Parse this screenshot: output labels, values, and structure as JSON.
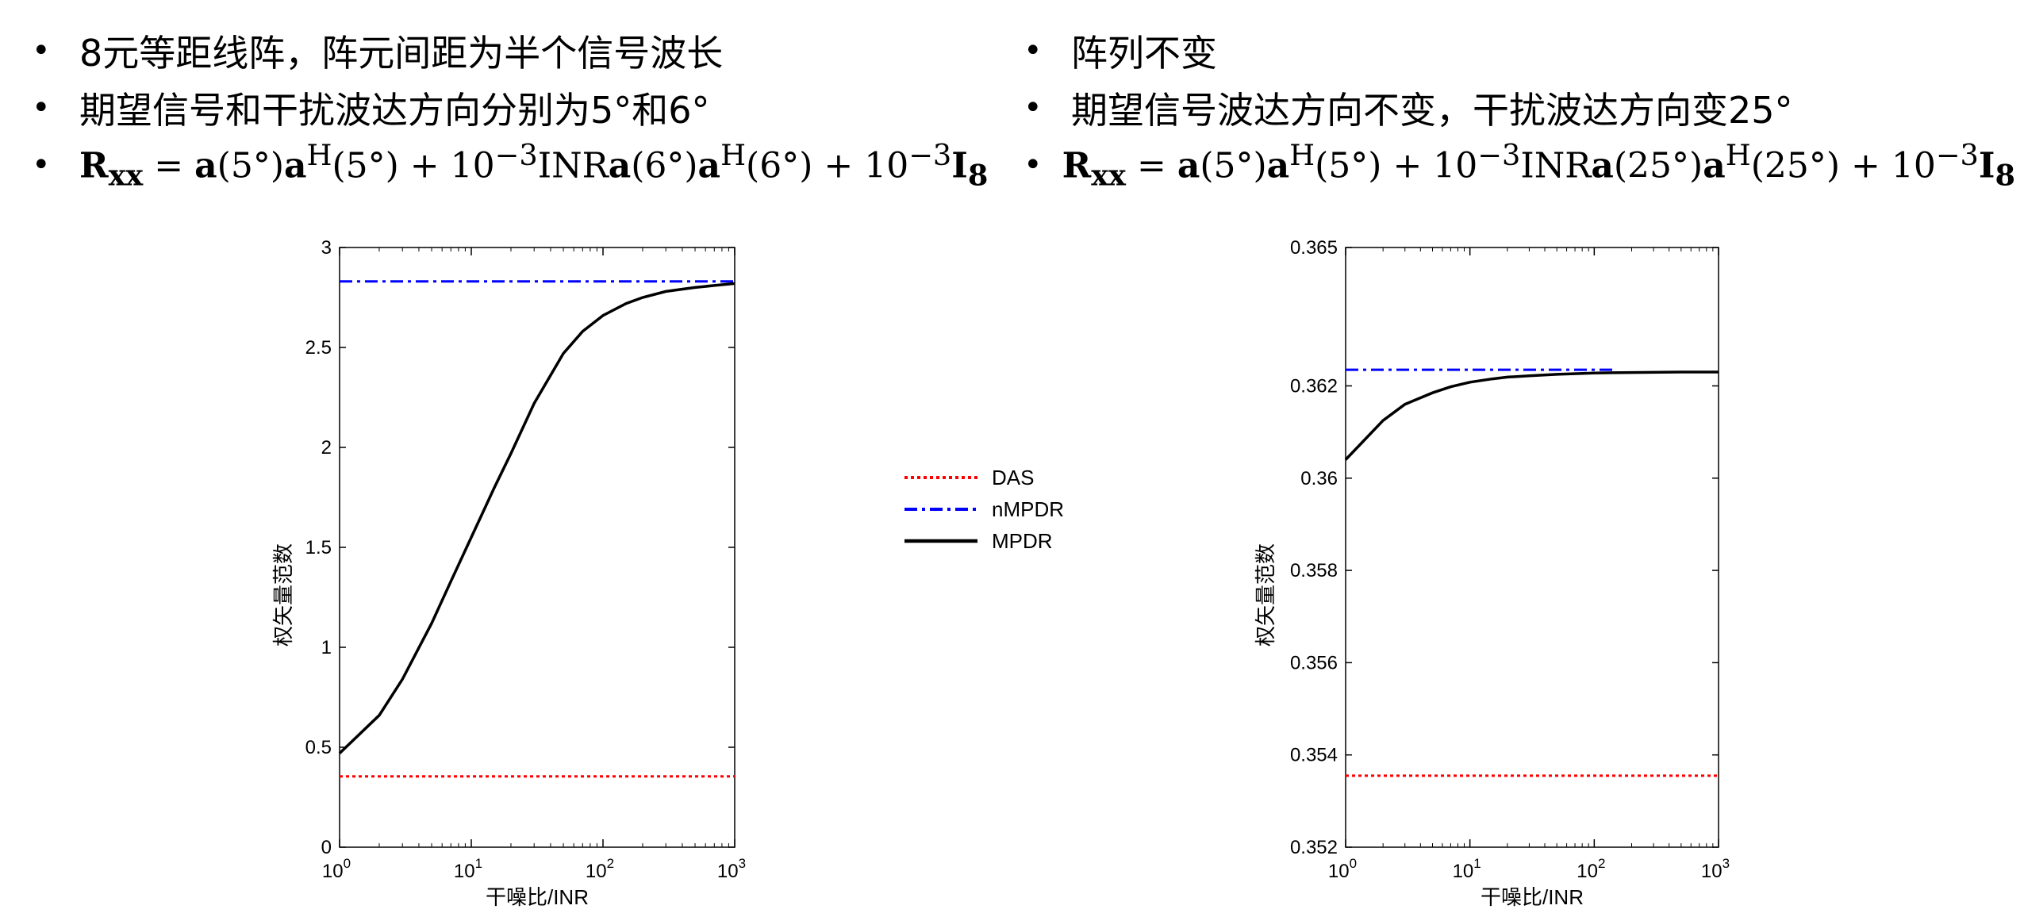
{
  "left_bullets": [
    {
      "text": "8元等距线阵，阵元间距为半个信号波长"
    },
    {
      "text": "期望信号和干扰波达方向分别为5°和6°"
    },
    {
      "formula": {
        "pre": "= ",
        "a": "a",
        "arg1": "(5°)",
        "ah": "a",
        "sup_h": "H",
        "arg2": "(5°) + 10",
        "exp1": "−3",
        "inr": "INR",
        "a2": "a",
        "arg3": "(6°)",
        "ah2": "a",
        "sup_h2": "H",
        "arg4": "(6°) + 10",
        "exp2": "−3",
        "I": "I",
        "sub_I": "8",
        "R": "R",
        "sub_R": "xx"
      }
    }
  ],
  "right_bullets": [
    {
      "text": "阵列不变"
    },
    {
      "text": "期望信号波达方向不变，干扰波达方向变25°"
    },
    {
      "formula": {
        "pre": "= ",
        "a": "a",
        "arg1": "(5°)",
        "ah": "a",
        "sup_h": "H",
        "arg2": "(5°) + 10",
        "exp1": "−3",
        "inr": "INR",
        "a2": "a",
        "arg3": "(25°)",
        "ah2": "a",
        "sup_h2": "H",
        "arg4": "(25°) + 10",
        "exp2": "−3",
        "I": "I",
        "sub_I": "8",
        "R": "R",
        "sub_R": "xx"
      }
    }
  ],
  "bullet_symbol": "•",
  "legend": [
    {
      "label": "DAS",
      "color": "#ff0000",
      "style": "dotted"
    },
    {
      "label": "nMPDR",
      "color": "#0000ff",
      "style": "dashdot"
    },
    {
      "label": "MPDR",
      "color": "#000000",
      "style": "solid"
    }
  ],
  "chart_data": [
    {
      "type": "line",
      "xscale": "log",
      "xlabel": "干噪比/INR",
      "ylabel": "权矢量范数",
      "xlim": [
        1,
        1000
      ],
      "ylim": [
        0,
        3
      ],
      "xticks": [
        {
          "base": "10",
          "exp": "0"
        },
        {
          "base": "10",
          "exp": "1"
        },
        {
          "base": "10",
          "exp": "2"
        },
        {
          "base": "10",
          "exp": "3"
        }
      ],
      "yticks": [
        "0",
        "0.5",
        "1",
        "1.5",
        "2",
        "2.5",
        "3"
      ],
      "series": [
        {
          "name": "DAS",
          "x": [
            1,
            1000
          ],
          "y": [
            0.354,
            0.354
          ]
        },
        {
          "name": "nMPDR",
          "x": [
            1,
            1000
          ],
          "y": [
            2.83,
            2.83
          ]
        },
        {
          "name": "MPDR",
          "x": [
            1,
            2,
            3,
            5,
            7,
            10,
            15,
            20,
            30,
            50,
            70,
            100,
            150,
            200,
            300,
            500,
            700,
            1000
          ],
          "y": [
            0.47,
            0.66,
            0.84,
            1.12,
            1.33,
            1.55,
            1.8,
            1.97,
            2.22,
            2.47,
            2.58,
            2.66,
            2.72,
            2.75,
            2.78,
            2.8,
            2.81,
            2.82
          ]
        }
      ]
    },
    {
      "type": "line",
      "xscale": "log",
      "xlabel": "干噪比/INR",
      "ylabel": "权矢量范数",
      "xlim": [
        1,
        1000
      ],
      "ylim": [
        0.352,
        0.365
      ],
      "xticks": [
        {
          "base": "10",
          "exp": "0"
        },
        {
          "base": "10",
          "exp": "1"
        },
        {
          "base": "10",
          "exp": "2"
        },
        {
          "base": "10",
          "exp": "3"
        }
      ],
      "yticks": [
        "0.352",
        "0.354",
        "0.356",
        "0.358",
        "0.36",
        "0.362",
        "0.365"
      ],
      "series": [
        {
          "name": "DAS",
          "x": [
            1,
            1000
          ],
          "y": [
            0.35355,
            0.35355
          ]
        },
        {
          "name": "nMPDR",
          "x": [
            1,
            150
          ],
          "y": [
            0.36235,
            0.36235
          ]
        },
        {
          "name": "MPDR",
          "x": [
            1,
            2,
            3,
            5,
            7,
            10,
            15,
            20,
            30,
            50,
            100,
            200,
            500,
            1000
          ],
          "y": [
            0.3604,
            0.36125,
            0.3616,
            0.36185,
            0.36198,
            0.36208,
            0.36215,
            0.36219,
            0.36222,
            0.36225,
            0.36228,
            0.36229,
            0.3623,
            0.3623
          ]
        }
      ]
    }
  ]
}
